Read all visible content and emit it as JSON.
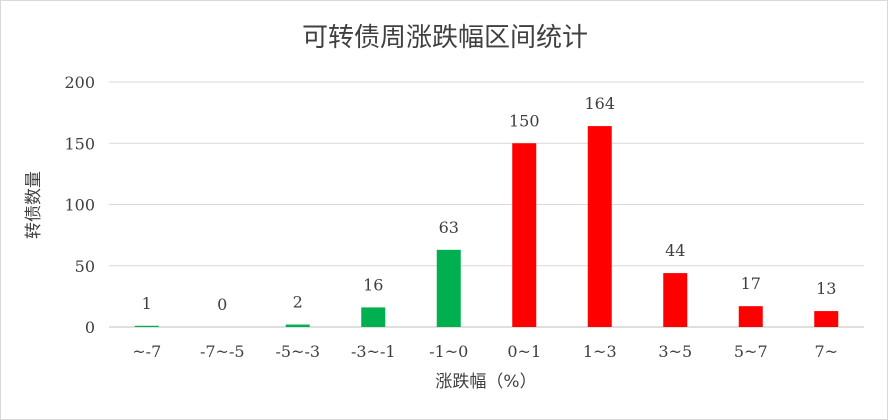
{
  "chart_data": {
    "type": "bar",
    "title": "可转债周涨跌幅区间统计",
    "xlabel": "涨跌幅（%）",
    "ylabel": "转债数量",
    "categories": [
      "~-7",
      "-7~-5",
      "-5~-3",
      "-3~-1",
      "-1~0",
      "0~1",
      "1~3",
      "3~5",
      "5~7",
      "7~"
    ],
    "values": [
      1,
      0,
      2,
      16,
      63,
      150,
      164,
      44,
      17,
      13
    ],
    "bar_colors": [
      "#00b050",
      "#00b050",
      "#00b050",
      "#00b050",
      "#00b050",
      "#ff0000",
      "#ff0000",
      "#ff0000",
      "#ff0000",
      "#ff0000"
    ],
    "ylim": [
      0,
      200
    ],
    "yticks": [
      0,
      50,
      100,
      150,
      200
    ],
    "grid": true,
    "legend": "none"
  }
}
